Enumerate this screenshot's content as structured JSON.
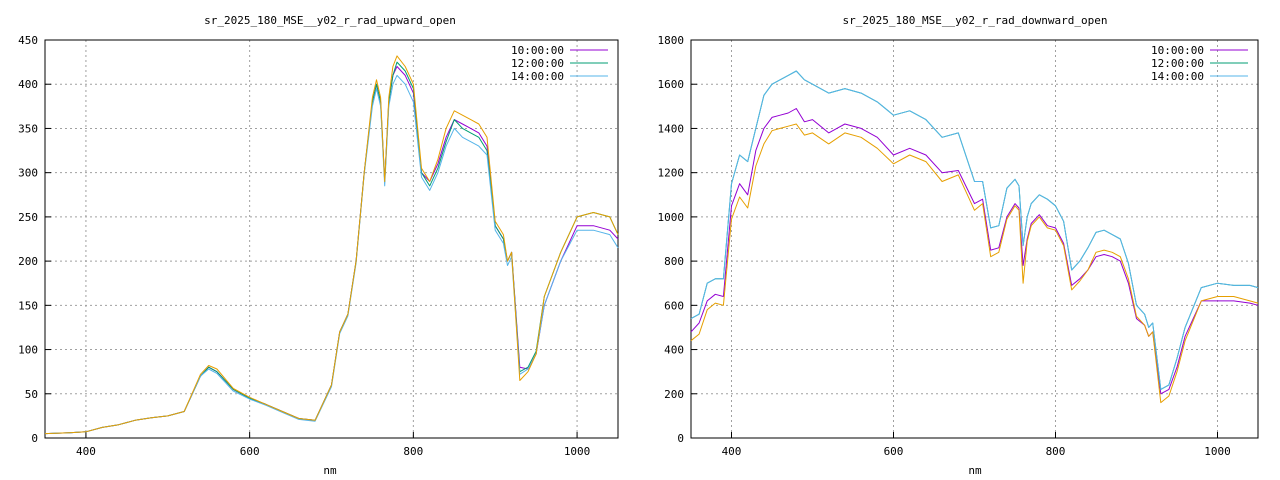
{
  "chart_data": [
    {
      "type": "line",
      "title": "sr_2025_180_MSE__y02_r_rad_upward_open",
      "xlabel": "nm",
      "ylabel": "",
      "xlim": [
        350,
        1050
      ],
      "ylim": [
        0,
        450
      ],
      "xticks": [
        400,
        600,
        800,
        1000
      ],
      "yticks": [
        0,
        50,
        100,
        150,
        200,
        250,
        300,
        350,
        400,
        450
      ],
      "grid": true,
      "legend_position": "top-right",
      "x": [
        350,
        380,
        400,
        420,
        440,
        460,
        480,
        500,
        520,
        540,
        550,
        560,
        580,
        600,
        620,
        640,
        660,
        680,
        700,
        710,
        720,
        730,
        740,
        750,
        755,
        760,
        765,
        770,
        775,
        780,
        790,
        800,
        810,
        820,
        830,
        840,
        850,
        860,
        870,
        880,
        890,
        900,
        910,
        915,
        920,
        930,
        940,
        950,
        960,
        980,
        1000,
        1020,
        1040,
        1050
      ],
      "series": [
        {
          "name": "10:00:00",
          "color": "#9400d3",
          "values": [
            5,
            6,
            7,
            12,
            15,
            20,
            23,
            25,
            30,
            70,
            80,
            75,
            55,
            45,
            38,
            30,
            22,
            20,
            60,
            120,
            140,
            200,
            300,
            380,
            400,
            380,
            290,
            380,
            410,
            420,
            410,
            390,
            300,
            290,
            310,
            340,
            360,
            355,
            350,
            345,
            330,
            240,
            225,
            200,
            210,
            80,
            78,
            95,
            150,
            200,
            240,
            240,
            235,
            225
          ]
        },
        {
          "name": "12:00:00",
          "color": "#009e73",
          "values": [
            5,
            6,
            7,
            12,
            15,
            20,
            23,
            25,
            30,
            70,
            80,
            75,
            55,
            45,
            38,
            30,
            22,
            20,
            60,
            120,
            140,
            200,
            300,
            380,
            400,
            380,
            290,
            380,
            410,
            425,
            415,
            395,
            300,
            285,
            305,
            335,
            360,
            350,
            345,
            340,
            325,
            240,
            225,
            200,
            210,
            75,
            80,
            98,
            160,
            210,
            250,
            255,
            250,
            230
          ]
        },
        {
          "name": "14:00:00",
          "color": "#56b4e9",
          "values": [
            5,
            6,
            7,
            12,
            15,
            20,
            23,
            25,
            30,
            70,
            78,
            73,
            53,
            44,
            37,
            29,
            21,
            19,
            58,
            118,
            138,
            198,
            298,
            375,
            395,
            375,
            285,
            375,
            400,
            410,
            400,
            380,
            295,
            280,
            300,
            330,
            350,
            340,
            335,
            330,
            320,
            235,
            220,
            195,
            205,
            72,
            78,
            95,
            150,
            200,
            235,
            235,
            230,
            215
          ]
        },
        {
          "name": "",
          "color": "#e69f00",
          "values": [
            5,
            6,
            7,
            12,
            15,
            20,
            23,
            25,
            30,
            72,
            82,
            78,
            56,
            46,
            38,
            30,
            22,
            20,
            60,
            120,
            140,
            200,
            300,
            385,
            405,
            385,
            290,
            385,
            420,
            432,
            420,
            400,
            305,
            290,
            315,
            350,
            370,
            365,
            360,
            355,
            340,
            245,
            230,
            200,
            210,
            65,
            75,
            95,
            160,
            210,
            250,
            255,
            250,
            230
          ]
        }
      ]
    },
    {
      "type": "line",
      "title": "sr_2025_180_MSE__y02_r_rad_downward_open",
      "xlabel": "nm",
      "ylabel": "",
      "xlim": [
        350,
        1050
      ],
      "ylim": [
        0,
        1800
      ],
      "xticks": [
        400,
        600,
        800,
        1000
      ],
      "yticks": [
        0,
        200,
        400,
        600,
        800,
        1000,
        1200,
        1400,
        1600,
        1800
      ],
      "grid": true,
      "legend_position": "top-right",
      "x": [
        350,
        360,
        370,
        380,
        390,
        400,
        410,
        420,
        430,
        440,
        450,
        460,
        470,
        480,
        490,
        500,
        520,
        540,
        560,
        580,
        600,
        620,
        640,
        660,
        680,
        700,
        710,
        720,
        730,
        740,
        750,
        755,
        760,
        765,
        770,
        780,
        790,
        800,
        810,
        820,
        830,
        840,
        850,
        860,
        870,
        880,
        890,
        900,
        910,
        915,
        920,
        930,
        940,
        950,
        960,
        980,
        1000,
        1020,
        1040,
        1050
      ],
      "series": [
        {
          "name": "10:00:00",
          "color": "#9400d3",
          "values": [
            480,
            520,
            620,
            650,
            640,
            1050,
            1150,
            1100,
            1300,
            1400,
            1450,
            1460,
            1470,
            1490,
            1430,
            1440,
            1380,
            1420,
            1400,
            1360,
            1280,
            1310,
            1280,
            1200,
            1210,
            1060,
            1080,
            850,
            860,
            1000,
            1060,
            1040,
            780,
            900,
            970,
            1010,
            960,
            950,
            880,
            690,
            720,
            760,
            820,
            830,
            820,
            800,
            700,
            540,
            510,
            460,
            480,
            200,
            220,
            320,
            460,
            620,
            620,
            620,
            610,
            600
          ]
        },
        {
          "name": "12:00:00",
          "color": "#009e73",
          "values": [
            540,
            560,
            700,
            720,
            720,
            1150,
            1280,
            1250,
            1400,
            1550,
            1600,
            1620,
            1640,
            1660,
            1620,
            1600,
            1560,
            1580,
            1560,
            1520,
            1460,
            1480,
            1440,
            1360,
            1380,
            1160,
            1160,
            950,
            960,
            1130,
            1170,
            1140,
            870,
            1000,
            1060,
            1100,
            1080,
            1050,
            980,
            760,
            800,
            860,
            930,
            940,
            920,
            900,
            790,
            600,
            560,
            500,
            520,
            220,
            240,
            360,
            500,
            680,
            700,
            690,
            690,
            680
          ]
        },
        {
          "name": "14:00:00",
          "color": "#56b4e9",
          "values": [
            540,
            560,
            700,
            720,
            720,
            1150,
            1280,
            1250,
            1400,
            1550,
            1600,
            1620,
            1640,
            1660,
            1620,
            1600,
            1560,
            1580,
            1560,
            1520,
            1460,
            1480,
            1440,
            1360,
            1380,
            1160,
            1160,
            950,
            960,
            1130,
            1170,
            1140,
            870,
            1000,
            1060,
            1100,
            1080,
            1050,
            980,
            760,
            800,
            860,
            930,
            940,
            920,
            900,
            790,
            600,
            560,
            500,
            520,
            220,
            240,
            360,
            500,
            680,
            700,
            690,
            690,
            680
          ]
        },
        {
          "name": "",
          "color": "#e69f00",
          "values": [
            440,
            470,
            580,
            610,
            600,
            990,
            1090,
            1040,
            1230,
            1330,
            1390,
            1400,
            1410,
            1420,
            1370,
            1380,
            1330,
            1380,
            1360,
            1310,
            1240,
            1280,
            1250,
            1160,
            1190,
            1030,
            1060,
            820,
            840,
            990,
            1050,
            1030,
            700,
            890,
            960,
            1000,
            950,
            940,
            870,
            670,
            710,
            760,
            840,
            850,
            840,
            820,
            720,
            550,
            510,
            460,
            480,
            160,
            190,
            300,
            440,
            620,
            640,
            640,
            620,
            610
          ]
        }
      ]
    }
  ]
}
